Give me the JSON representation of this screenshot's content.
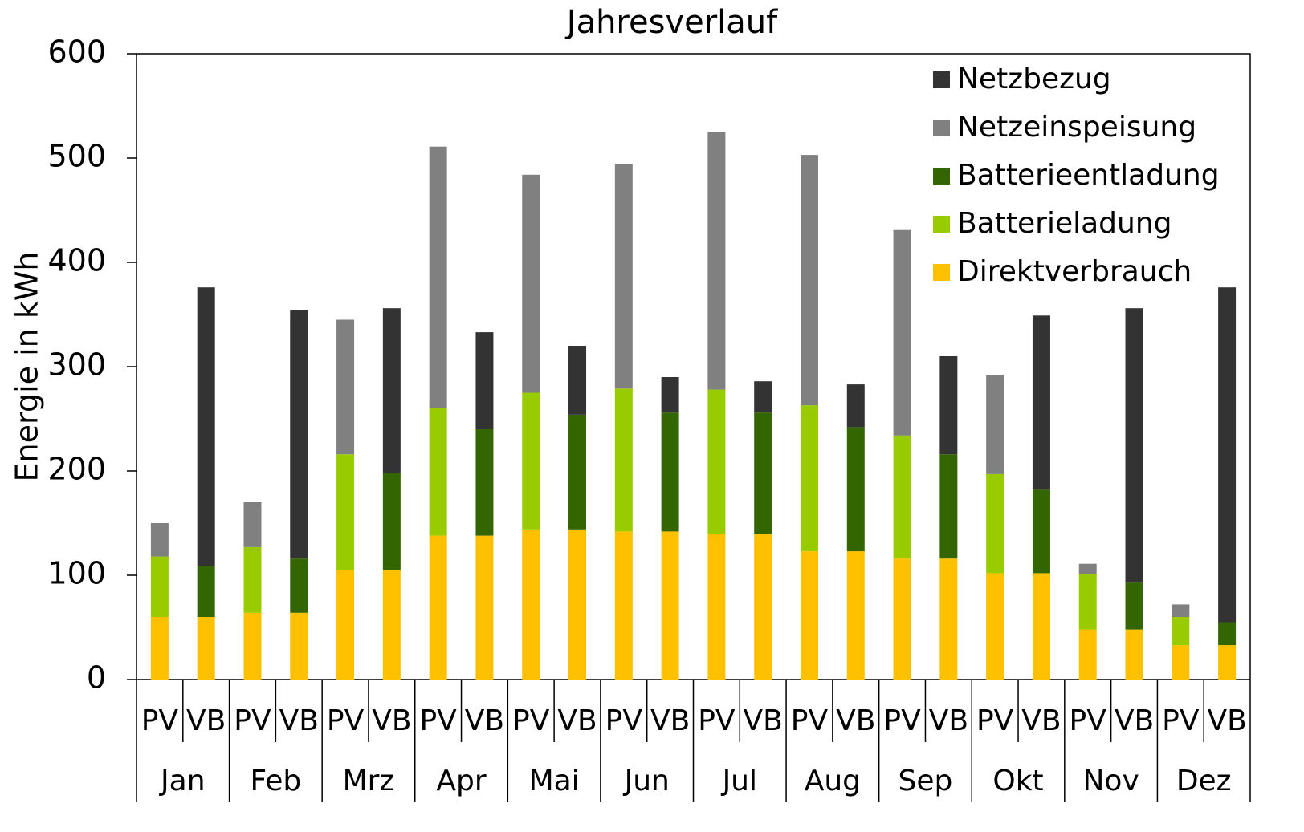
{
  "chart_data": {
    "type": "stacked_bar",
    "title": "Jahresverlauf",
    "y_label": "Energie in kWh",
    "categories": [
      "PV",
      "VB",
      "PV",
      "VB",
      "PV",
      "VB",
      "PV",
      "VB",
      "PV",
      "VB",
      "PV",
      "VB",
      "PV",
      "VB",
      "PV",
      "VB",
      "PV",
      "VB",
      "PV",
      "VB",
      "PV",
      "VB",
      "PV",
      "VB"
    ],
    "groups": [
      "Jan",
      "Feb",
      "Mrz",
      "Apr",
      "Mai",
      "Jun",
      "Jul",
      "Aug",
      "Sep",
      "Okt",
      "Nov",
      "Dez"
    ],
    "series": [
      {
        "name": "Direktverbrauch",
        "color": "#ffc000",
        "values": [
          60,
          60,
          64,
          64,
          105,
          105,
          138,
          138,
          144,
          144,
          142,
          142,
          140,
          140,
          123,
          123,
          116,
          116,
          102,
          102,
          48,
          48,
          33,
          33
        ]
      },
      {
        "name": "Batterieladung",
        "color": "#99cc00",
        "values": [
          58,
          null,
          63,
          null,
          111,
          null,
          122,
          null,
          131,
          null,
          137,
          null,
          138,
          null,
          140,
          null,
          118,
          null,
          95,
          null,
          53,
          null,
          27,
          null
        ]
      },
      {
        "name": "Batterieentladung",
        "color": "#336600",
        "values": [
          null,
          49,
          null,
          52,
          null,
          93,
          null,
          102,
          null,
          110,
          null,
          114,
          null,
          116,
          null,
          119,
          null,
          100,
          null,
          80,
          null,
          45,
          null,
          22
        ]
      },
      {
        "name": "Netzeinspeisung",
        "color": "#808080",
        "values": [
          32,
          null,
          43,
          null,
          129,
          null,
          251,
          null,
          209,
          null,
          215,
          null,
          247,
          null,
          240,
          null,
          197,
          null,
          95,
          null,
          10,
          null,
          12,
          null
        ]
      },
      {
        "name": "Netzbezug",
        "color": "#333333",
        "values": [
          null,
          267,
          null,
          238,
          null,
          158,
          null,
          93,
          null,
          66,
          null,
          34,
          null,
          30,
          null,
          41,
          null,
          94,
          null,
          167,
          null,
          263,
          null,
          321
        ]
      }
    ],
    "ylim": [
      0,
      600
    ],
    "yticks": [
      0,
      100,
      200,
      300,
      400,
      500,
      600
    ],
    "legend": "top-right"
  }
}
